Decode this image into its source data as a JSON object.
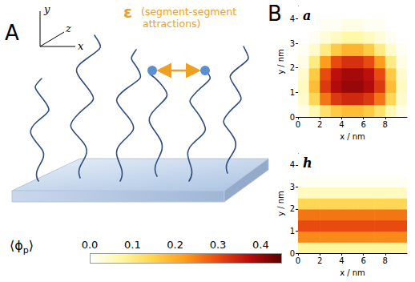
{
  "panel_A": {
    "letter": "A",
    "axes": [
      "x",
      "y",
      "z"
    ],
    "epsilon": "ε",
    "epsilon_note": "(segment-segment attractions)"
  },
  "panel_B_letter": "B",
  "colorbar": {
    "label": {
      "before": "⟨ϕ",
      "sub": "p",
      "after": "⟩"
    },
    "range": [
      0,
      0.45
    ],
    "ticks": [
      {
        "value": 0,
        "label": "0.0"
      },
      {
        "value": 0.1,
        "label": "0.1"
      },
      {
        "value": 0.2,
        "label": "0.2"
      },
      {
        "value": 0.3,
        "label": "0.3"
      },
      {
        "value": 0.4,
        "label": "0.4"
      }
    ]
  },
  "chart_data": [
    {
      "type": "heatmap",
      "panel": "a",
      "x_label": "x / nm",
      "y_label": "y / nm",
      "xlim": [
        0,
        10
      ],
      "xticks": [
        0,
        2,
        4,
        6,
        8
      ],
      "ylim": [
        0,
        4.5
      ],
      "yticks": [
        0,
        1,
        2,
        3,
        4
      ],
      "x": [
        0.5,
        1.5,
        2.5,
        3.5,
        4.5,
        5.5,
        6.5,
        7.5,
        8.5,
        9.5
      ],
      "y": [
        0.25,
        0.75,
        1.25,
        1.75,
        2.25,
        2.75,
        3.25,
        3.75,
        4.25
      ],
      "cells": [
        [
          0.02,
          0.06,
          0.12,
          0.16,
          0.18,
          0.18,
          0.16,
          0.12,
          0.06,
          0.02
        ],
        [
          0.04,
          0.14,
          0.26,
          0.32,
          0.34,
          0.34,
          0.32,
          0.26,
          0.14,
          0.04
        ],
        [
          0.05,
          0.18,
          0.32,
          0.38,
          0.4,
          0.4,
          0.38,
          0.32,
          0.18,
          0.05
        ],
        [
          0.04,
          0.16,
          0.3,
          0.37,
          0.39,
          0.39,
          0.37,
          0.3,
          0.16,
          0.04
        ],
        [
          0.02,
          0.1,
          0.22,
          0.3,
          0.33,
          0.33,
          0.3,
          0.22,
          0.1,
          0.02
        ],
        [
          0.01,
          0.04,
          0.1,
          0.16,
          0.19,
          0.19,
          0.16,
          0.1,
          0.04,
          0.01
        ],
        [
          0,
          0.01,
          0.03,
          0.05,
          0.07,
          0.07,
          0.05,
          0.03,
          0.01,
          0
        ],
        [
          0,
          0,
          0.01,
          0.01,
          0.02,
          0.02,
          0.01,
          0.01,
          0,
          0
        ],
        [
          0,
          0,
          0,
          0,
          0,
          0,
          0,
          0,
          0,
          0
        ]
      ]
    },
    {
      "type": "heatmap",
      "panel": "h",
      "x_label": "x / nm",
      "y_label": "y / nm",
      "xlim": [
        0,
        10
      ],
      "xticks": [
        0,
        2,
        4,
        6,
        8
      ],
      "ylim": [
        0,
        4.5
      ],
      "yticks": [
        0,
        1,
        2,
        3,
        4
      ],
      "x": [
        0.5,
        1.5,
        2.5,
        3.5,
        4.5,
        5.5,
        6.5,
        7.5,
        8.5,
        9.5
      ],
      "y": [
        0.25,
        0.75,
        1.25,
        1.75,
        2.25,
        2.75,
        3.25,
        3.75,
        4.25
      ],
      "cells": [
        [
          0.08,
          0.08,
          0.08,
          0.08,
          0.08,
          0.08,
          0.08,
          0.08,
          0.08,
          0.08
        ],
        [
          0.24,
          0.24,
          0.24,
          0.24,
          0.24,
          0.24,
          0.24,
          0.24,
          0.24,
          0.24
        ],
        [
          0.3,
          0.3,
          0.3,
          0.3,
          0.3,
          0.3,
          0.3,
          0.3,
          0.3,
          0.3
        ],
        [
          0.26,
          0.26,
          0.26,
          0.26,
          0.26,
          0.26,
          0.26,
          0.26,
          0.26,
          0.26
        ],
        [
          0.14,
          0.14,
          0.14,
          0.14,
          0.14,
          0.14,
          0.14,
          0.14,
          0.14,
          0.14
        ],
        [
          0.05,
          0.05,
          0.05,
          0.05,
          0.05,
          0.05,
          0.05,
          0.05,
          0.05,
          0.05
        ],
        [
          0.01,
          0.01,
          0.01,
          0.01,
          0.01,
          0.01,
          0.01,
          0.01,
          0.01,
          0.01
        ],
        [
          0,
          0,
          0,
          0,
          0,
          0,
          0,
          0,
          0,
          0
        ],
        [
          0,
          0,
          0,
          0,
          0,
          0,
          0,
          0,
          0,
          0
        ]
      ]
    }
  ]
}
